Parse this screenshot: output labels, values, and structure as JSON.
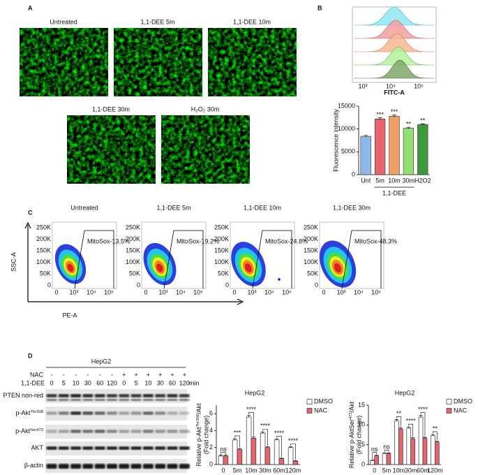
{
  "panel_a": {
    "label": "A",
    "images": [
      "Untreated",
      "1,1-DEE 5m",
      "1,1-DEE 10m",
      "1,1-DEE 30m",
      "H₂O₂ 30m"
    ]
  },
  "panel_b": {
    "label": "B",
    "histogram_x_label": "FITC-A",
    "histogram_xticks": [
      "10³",
      "10⁴",
      "10⁵"
    ]
  },
  "panel_c": {
    "label": "C",
    "titles": [
      "Untreated",
      "1,1-DEE 5m",
      "1,1-DEE 10m",
      "1,1-DEE 30m"
    ],
    "gates": [
      "MitoSox-13.5%",
      "MitoSox-19.2%",
      "MitoSox-24.8%",
      "MitoSox-48.3%"
    ],
    "y_label": "SSC-A",
    "x_label": "PE-A",
    "yticks": [
      "250K",
      "200K",
      "150K",
      "100K",
      "50K",
      "0"
    ],
    "xticks": [
      "0",
      "10³",
      "10⁴",
      "10⁵"
    ]
  },
  "panel_d": {
    "label": "D",
    "cell_line": "HepG2",
    "nac_label": "NAC",
    "nac": [
      "-",
      "-",
      "-",
      "-",
      "-",
      "-",
      "+",
      "+",
      "+",
      "+",
      "+",
      "+"
    ],
    "treatment_label": "1,1-DEE",
    "times": [
      "0",
      "5",
      "10",
      "30",
      "60",
      "120",
      "0",
      "5",
      "10",
      "30",
      "60",
      "120"
    ],
    "time_unit": "min",
    "rows": [
      {
        "text": "PTEN non-red"
      },
      {
        "text": "p-Akt",
        "sup": "Thr308"
      },
      {
        "text": "p-Akt",
        "sup": "Ser473"
      },
      {
        "text": "AKT"
      },
      {
        "text": "β-actin"
      }
    ]
  },
  "chart_data": [
    {
      "type": "bar",
      "y_label": "Fluorescence intensity",
      "categories": [
        "Unt",
        "5m",
        "10m",
        "30m",
        "H2O2"
      ],
      "group_label": "1,1-DEE",
      "values": [
        8400,
        12200,
        12800,
        10200,
        11000
      ],
      "errors": [
        200,
        250,
        250,
        200,
        150
      ],
      "colors": [
        "#8fb8ea",
        "#e8646c",
        "#f0a064",
        "#92e070",
        "#3c9a3c"
      ],
      "significance": [
        null,
        "***",
        "***",
        "**",
        "**"
      ],
      "ylim": [
        0,
        15000
      ],
      "yticks": [
        0,
        5000,
        10000,
        15000
      ]
    },
    {
      "type": "grouped_bar",
      "title": "HepG2",
      "y_label": {
        "text": "Relative p-Akt",
        "sup": "Thr308",
        "tail": "/Akt"
      },
      "y_label_2": "(Fold change)",
      "categories": [
        "0",
        "5m",
        "10m",
        "30m",
        "60m",
        "120m"
      ],
      "series": [
        {
          "name": "DMSO",
          "color": "#ffffff",
          "values": [
            1.0,
            2.9,
            5.6,
            3.7,
            2.9,
            2.0
          ],
          "errors": [
            0.1,
            0.15,
            0.2,
            0.15,
            0.1,
            0.1
          ]
        },
        {
          "name": "NAC",
          "color": "#e8646c",
          "values": [
            1.0,
            1.8,
            3.1,
            2.0,
            0.7,
            0.4
          ],
          "errors": [
            0.1,
            0.1,
            0.15,
            0.1,
            0.05,
            0.05
          ]
        }
      ],
      "significance": [
        "ns",
        "***",
        "****",
        "****",
        "****",
        "****"
      ],
      "ylim": [
        0,
        7
      ],
      "yticks": [
        0,
        2,
        4,
        6
      ]
    },
    {
      "type": "grouped_bar",
      "title": "HepG2",
      "y_label": {
        "text": "Relative p-AktSer",
        "sup": "473",
        "tail": "/Akt"
      },
      "y_label_2": "(Fold change)",
      "categories": [
        "0",
        "5m",
        "10m",
        "30m",
        "60m",
        "120m"
      ],
      "series": [
        {
          "name": "DMSO",
          "color": "#ffffff",
          "values": [
            1.0,
            2.8,
            11.0,
            9.2,
            12.0,
            7.3
          ],
          "errors": [
            0.1,
            0.15,
            0.4,
            0.3,
            0.4,
            0.3
          ]
        },
        {
          "name": "NAC",
          "color": "#e8646c",
          "values": [
            2.2,
            2.8,
            9.0,
            6.5,
            6.7,
            5.7
          ],
          "errors": [
            0.15,
            0.15,
            0.3,
            0.3,
            0.2,
            0.2
          ]
        }
      ],
      "significance": [
        "ns",
        "ns",
        "**",
        "****",
        "****",
        "**"
      ],
      "ylim": [
        0,
        15
      ],
      "yticks": [
        0,
        5,
        10,
        15
      ]
    }
  ]
}
